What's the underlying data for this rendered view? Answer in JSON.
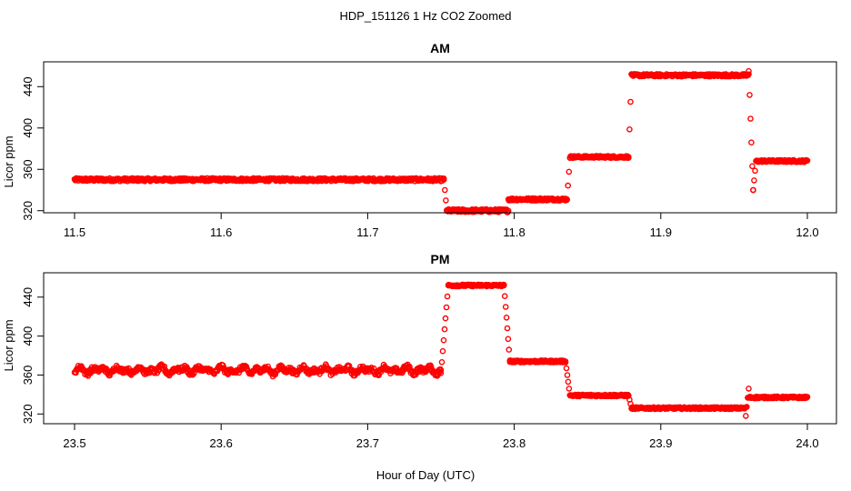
{
  "figure": {
    "title": "HDP_151126  1 Hz CO2 Zoomed",
    "xlabel": "Hour of Day (UTC)",
    "point_color": "#ff0000"
  },
  "chart_data": [
    {
      "type": "scatter",
      "title": "AM",
      "xlabel": "",
      "ylabel": "Licor ppm",
      "xlim": [
        11.5,
        12.0
      ],
      "ylim": [
        318,
        464
      ],
      "xticks": [
        "11.5",
        "11.6",
        "11.7",
        "11.8",
        "11.9",
        "12.0"
      ],
      "yticks": [
        "320",
        "360",
        "400",
        "440"
      ],
      "segments": [
        {
          "x0": 11.5,
          "x1": 11.752,
          "y": 350,
          "noise": 1.5
        },
        {
          "x0": 11.752,
          "x1": 11.754,
          "y": [
            350,
            320
          ]
        },
        {
          "x0": 11.754,
          "x1": 11.796,
          "y": 320,
          "noise": 1.5
        },
        {
          "x0": 11.796,
          "x1": 11.836,
          "y": 331,
          "noise": 1.2
        },
        {
          "x0": 11.836,
          "x1": 11.838,
          "y": [
            331,
            371
          ]
        },
        {
          "x0": 11.838,
          "x1": 11.878,
          "y": 372,
          "noise": 1.0
        },
        {
          "x0": 11.878,
          "x1": 11.88,
          "y": [
            372,
            452
          ]
        },
        {
          "x0": 11.88,
          "x1": 11.96,
          "y": 451,
          "noise": 1.2
        },
        {
          "x0": 11.96,
          "x1": 11.963,
          "y": [
            455,
            340
          ]
        },
        {
          "x0": 11.963,
          "x1": 11.965,
          "y": [
            340,
            368
          ]
        },
        {
          "x0": 11.965,
          "x1": 12.0,
          "y": 368,
          "noise": 1.0
        }
      ]
    },
    {
      "type": "scatter",
      "title": "PM",
      "xlabel": "",
      "ylabel": "Licor ppm",
      "xlim": [
        23.5,
        24.0
      ],
      "ylim": [
        310,
        465
      ],
      "xticks": [
        "23.5",
        "23.6",
        "23.7",
        "23.8",
        "23.9",
        "24.0"
      ],
      "yticks": [
        "320",
        "360",
        "400",
        "440"
      ],
      "segments": [
        {
          "x0": 23.5,
          "x1": 23.75,
          "y": 365,
          "noise": 2.5,
          "wave": 4
        },
        {
          "x0": 23.75,
          "x1": 23.755,
          "y": [
            362,
            452
          ]
        },
        {
          "x0": 23.755,
          "x1": 23.793,
          "y": 452,
          "noise": 1.0
        },
        {
          "x0": 23.793,
          "x1": 23.797,
          "y": [
            452,
            375
          ]
        },
        {
          "x0": 23.797,
          "x1": 23.835,
          "y": 374,
          "noise": 1.0
        },
        {
          "x0": 23.835,
          "x1": 23.838,
          "y": [
            374,
            339
          ]
        },
        {
          "x0": 23.838,
          "x1": 23.878,
          "y": 339,
          "noise": 1.0
        },
        {
          "x0": 23.878,
          "x1": 23.88,
          "y": [
            339,
            326
          ]
        },
        {
          "x0": 23.88,
          "x1": 23.958,
          "y": 326,
          "noise": 1.0
        },
        {
          "x0": 23.958,
          "x1": 23.96,
          "y": [
            318,
            346
          ]
        },
        {
          "x0": 23.96,
          "x1": 24.0,
          "y": 337,
          "noise": 1.0
        }
      ]
    }
  ]
}
